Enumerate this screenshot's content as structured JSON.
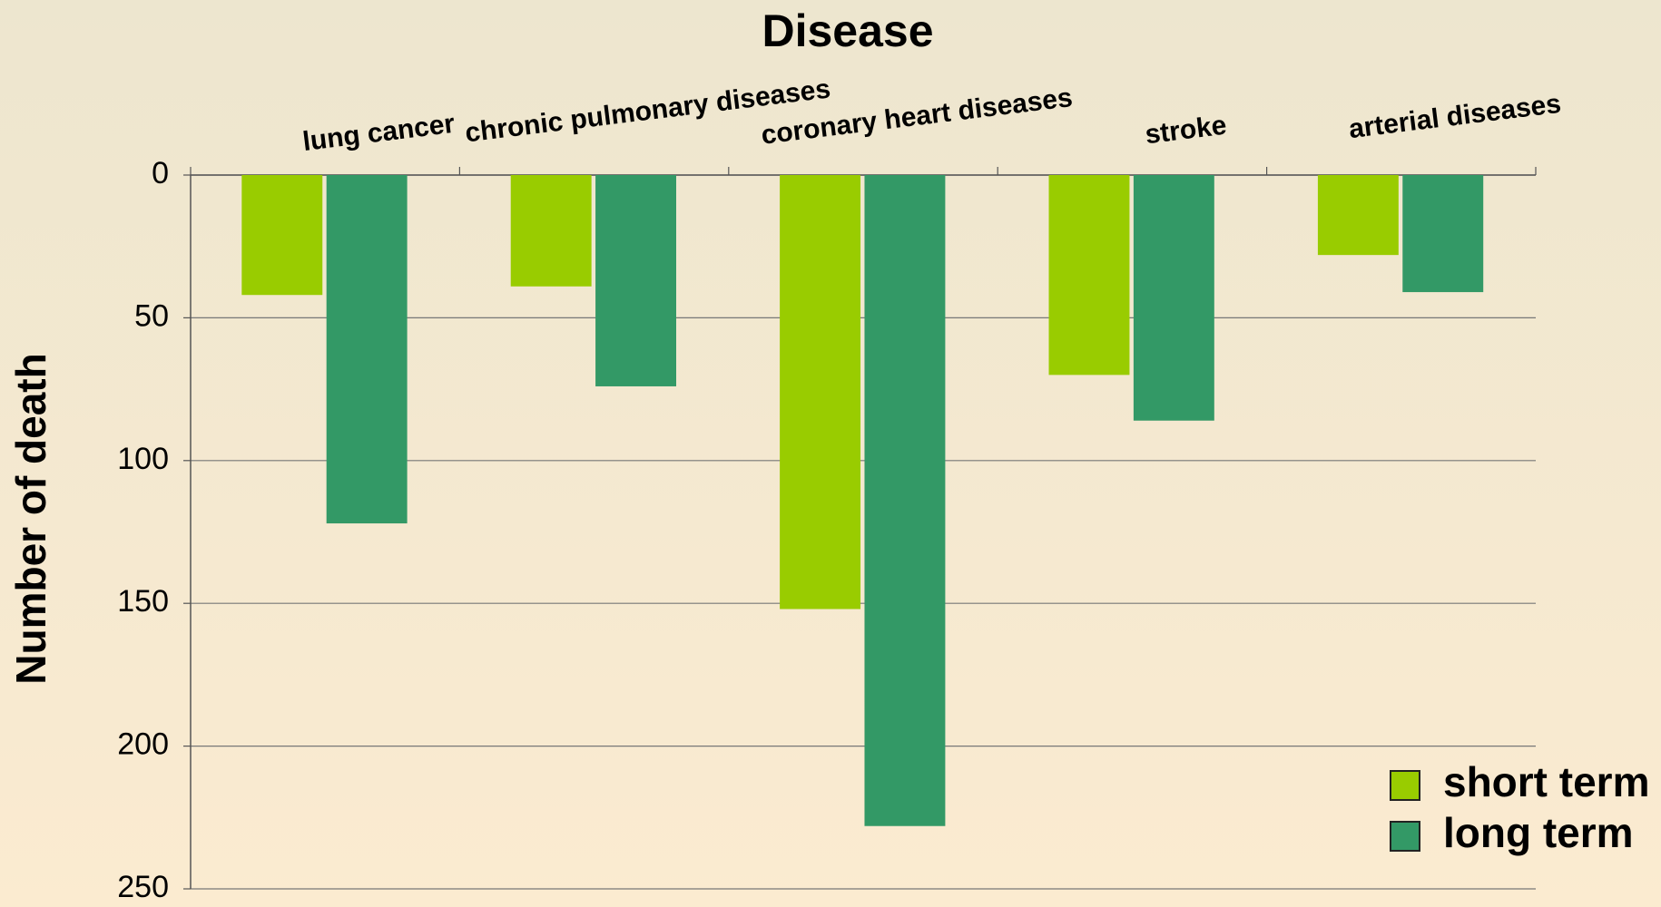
{
  "chart_data": {
    "type": "bar",
    "title": "Disease",
    "y_label": "Number of death",
    "categories": [
      "lung cancer",
      "chronic pulmonary diseases",
      "coronary heart diseases",
      "stroke",
      "arterial diseases"
    ],
    "series": [
      {
        "name": "short term",
        "color": "#99cc00",
        "values": [
          42,
          39,
          152,
          70,
          28
        ]
      },
      {
        "name": "long term",
        "color": "#339966",
        "values": [
          122,
          74,
          228,
          86,
          41
        ]
      }
    ],
    "ylim": [
      0,
      250
    ],
    "yticks": [
      0,
      50,
      100,
      150,
      200,
      250
    ],
    "y_inverted": true,
    "grid": true,
    "legend": "bottom-right"
  }
}
